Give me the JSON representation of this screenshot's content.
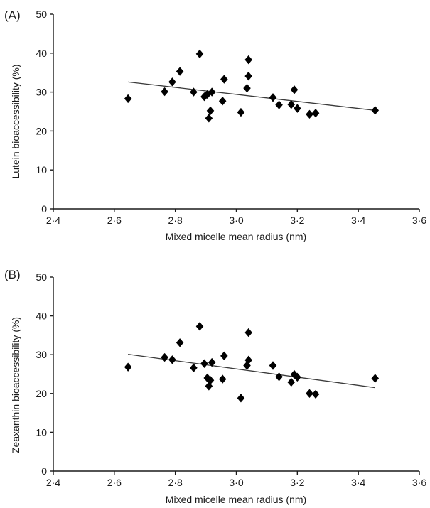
{
  "chart_data": [
    {
      "type": "scatter",
      "panel_label": "(A)",
      "xlabel": "Mixed micelle mean radius (nm)",
      "ylabel": "Lutein bioaccessibility (%)",
      "xlim": [
        2.4,
        3.6
      ],
      "ylim": [
        0,
        50
      ],
      "xticks": [
        2.4,
        2.6,
        2.8,
        3.0,
        3.2,
        3.4,
        3.6
      ],
      "xtick_labels": [
        "2·4",
        "2·6",
        "2·8",
        "3·0",
        "3·2",
        "3·4",
        "3·6"
      ],
      "yticks": [
        0,
        10,
        20,
        30,
        40,
        50
      ],
      "ytick_labels": [
        "0",
        "10",
        "20",
        "30",
        "40",
        "50"
      ],
      "grid": false,
      "marker": "diamond",
      "marker_color": "#000000",
      "points": [
        {
          "x": 2.645,
          "y": 28.3
        },
        {
          "x": 2.765,
          "y": 30.1
        },
        {
          "x": 2.79,
          "y": 32.6
        },
        {
          "x": 2.815,
          "y": 35.3
        },
        {
          "x": 2.86,
          "y": 30.0
        },
        {
          "x": 2.88,
          "y": 39.8
        },
        {
          "x": 2.895,
          "y": 28.8
        },
        {
          "x": 2.905,
          "y": 29.4
        },
        {
          "x": 2.91,
          "y": 23.3
        },
        {
          "x": 2.915,
          "y": 25.2
        },
        {
          "x": 2.92,
          "y": 30.0
        },
        {
          "x": 2.955,
          "y": 27.7
        },
        {
          "x": 2.96,
          "y": 33.3
        },
        {
          "x": 3.015,
          "y": 24.8
        },
        {
          "x": 3.035,
          "y": 31.0
        },
        {
          "x": 3.04,
          "y": 38.3
        },
        {
          "x": 3.04,
          "y": 34.1
        },
        {
          "x": 3.12,
          "y": 28.6
        },
        {
          "x": 3.14,
          "y": 26.7
        },
        {
          "x": 3.18,
          "y": 26.8
        },
        {
          "x": 3.19,
          "y": 30.6
        },
        {
          "x": 3.2,
          "y": 25.8
        },
        {
          "x": 3.24,
          "y": 24.3
        },
        {
          "x": 3.26,
          "y": 24.6
        },
        {
          "x": 3.455,
          "y": 25.3
        }
      ],
      "trendline": {
        "x": [
          2.645,
          3.455
        ],
        "y": [
          32.6,
          25.3
        ]
      }
    },
    {
      "type": "scatter",
      "panel_label": "(B)",
      "xlabel": "Mixed micelle mean radius (nm)",
      "ylabel": "Zeaxanthin bioaccessibility (%)",
      "xlim": [
        2.4,
        3.6
      ],
      "ylim": [
        0,
        50
      ],
      "xticks": [
        2.4,
        2.6,
        2.8,
        3.0,
        3.2,
        3.4,
        3.6
      ],
      "xtick_labels": [
        "2·4",
        "2·6",
        "2·8",
        "3·0",
        "3·2",
        "3·4",
        "3·6"
      ],
      "yticks": [
        0,
        10,
        20,
        30,
        40,
        50
      ],
      "ytick_labels": [
        "0",
        "10",
        "20",
        "30",
        "40",
        "50"
      ],
      "grid": false,
      "marker": "diamond",
      "marker_color": "#000000",
      "points": [
        {
          "x": 2.645,
          "y": 26.8
        },
        {
          "x": 2.765,
          "y": 29.3
        },
        {
          "x": 2.79,
          "y": 28.7
        },
        {
          "x": 2.815,
          "y": 33.1
        },
        {
          "x": 2.86,
          "y": 26.6
        },
        {
          "x": 2.88,
          "y": 37.3
        },
        {
          "x": 2.895,
          "y": 27.7
        },
        {
          "x": 2.905,
          "y": 24.0
        },
        {
          "x": 2.91,
          "y": 21.9
        },
        {
          "x": 2.915,
          "y": 23.4
        },
        {
          "x": 2.92,
          "y": 28.0
        },
        {
          "x": 2.955,
          "y": 23.7
        },
        {
          "x": 2.96,
          "y": 29.7
        },
        {
          "x": 3.015,
          "y": 18.8
        },
        {
          "x": 3.035,
          "y": 27.2
        },
        {
          "x": 3.04,
          "y": 35.7
        },
        {
          "x": 3.04,
          "y": 28.6
        },
        {
          "x": 3.12,
          "y": 27.2
        },
        {
          "x": 3.14,
          "y": 24.3
        },
        {
          "x": 3.18,
          "y": 22.9
        },
        {
          "x": 3.19,
          "y": 24.9
        },
        {
          "x": 3.2,
          "y": 24.2
        },
        {
          "x": 3.24,
          "y": 20.0
        },
        {
          "x": 3.26,
          "y": 19.8
        },
        {
          "x": 3.455,
          "y": 23.9
        }
      ],
      "trendline": {
        "x": [
          2.645,
          3.455
        ],
        "y": [
          30.1,
          21.5
        ]
      }
    }
  ]
}
